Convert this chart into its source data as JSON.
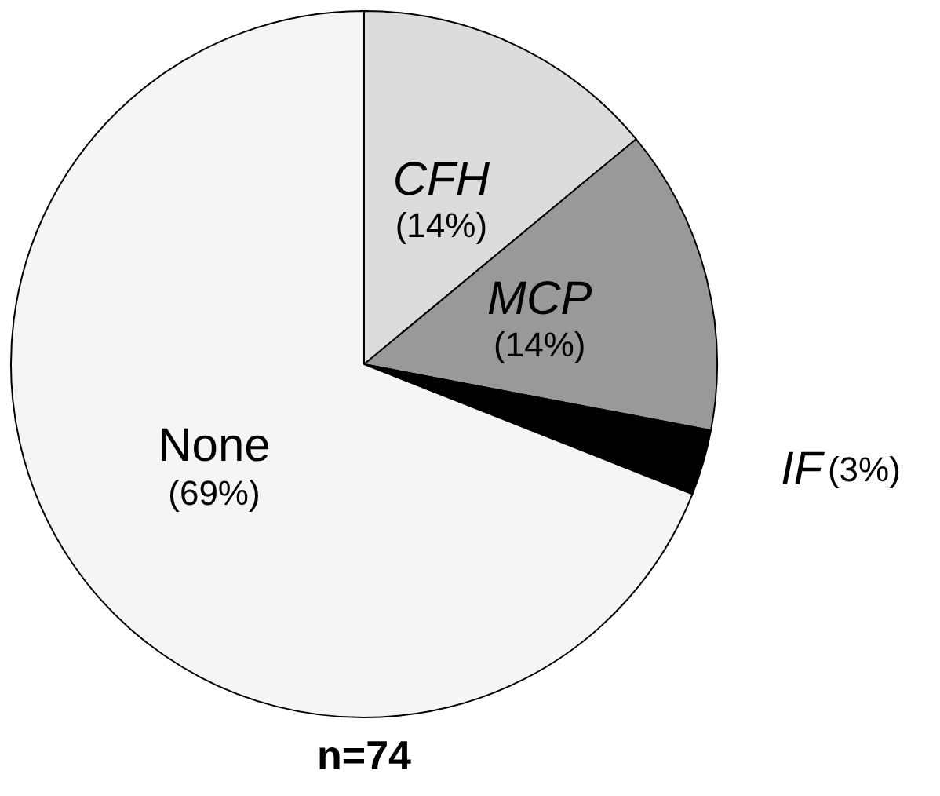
{
  "chart_data": {
    "type": "pie",
    "categories": [
      "CFH",
      "MCP",
      "IF",
      "None"
    ],
    "values": [
      14,
      14,
      3,
      69
    ],
    "value_labels": [
      "(14%)",
      "(14%)",
      "(3%)",
      "(69%)"
    ],
    "colors": [
      "#dcdcdc",
      "#999999",
      "#000000",
      "#f5f5f5"
    ],
    "annotations": [
      "n=74"
    ],
    "legend": false
  }
}
